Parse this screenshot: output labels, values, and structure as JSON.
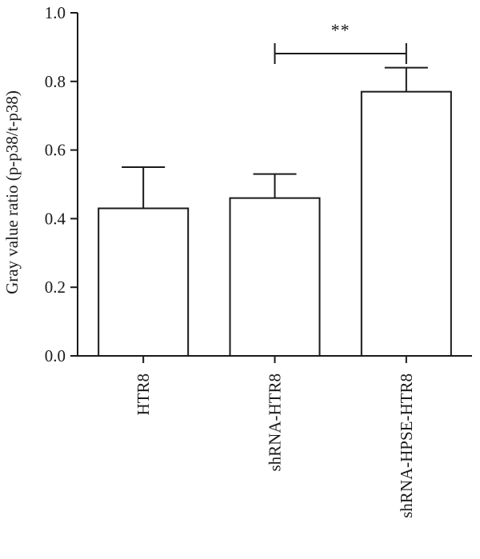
{
  "chart_data": {
    "type": "bar",
    "title": "",
    "xlabel": "",
    "ylabel": "Gray value ratio (p-p38/t-p38)",
    "ylim": [
      0,
      1.0
    ],
    "yticks": [
      "0.0",
      "0.2",
      "0.4",
      "0.6",
      "0.8",
      "1.0"
    ],
    "categories": [
      "HTR8",
      "shRNA-HTR8",
      "shRNA-HPSE-HTR8"
    ],
    "values": [
      0.43,
      0.46,
      0.77
    ],
    "errors": [
      0.12,
      0.07,
      0.07
    ],
    "bar_fill": "#ffffff",
    "bar_stroke": "#1a1a1a",
    "grid": false,
    "legend": "none",
    "significance": [
      {
        "from": "shRNA-HTR8",
        "to": "shRNA-HPSE-HTR8",
        "label": "**"
      }
    ]
  }
}
